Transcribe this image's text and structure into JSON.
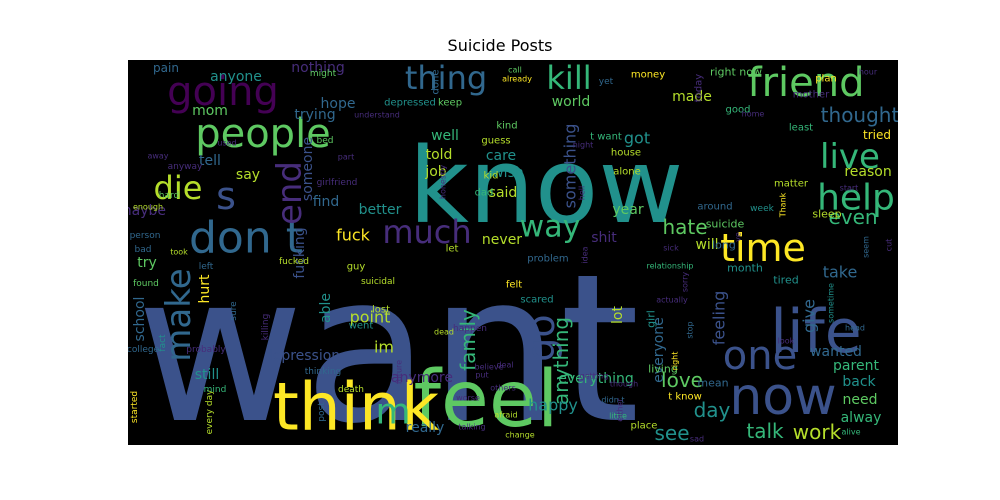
{
  "chart_data": {
    "type": "wordcloud",
    "title": "Suicide Posts",
    "background": "#000000",
    "words": [
      {
        "text": "want",
        "weight": 100,
        "color": "#3b528b"
      },
      {
        "text": "know",
        "weight": 78,
        "color": "#21918c"
      },
      {
        "text": "feel",
        "weight": 45,
        "color": "#5ec962"
      },
      {
        "text": "think",
        "weight": 42,
        "color": "#fde725"
      },
      {
        "text": "life",
        "weight": 40,
        "color": "#3b528b"
      },
      {
        "text": "now",
        "weight": 36,
        "color": "#3b528b"
      },
      {
        "text": "people",
        "weight": 32,
        "color": "#5ec962"
      },
      {
        "text": "don t",
        "weight": 30,
        "color": "#31688e"
      },
      {
        "text": "going",
        "weight": 30,
        "color": "#440154"
      },
      {
        "text": "time",
        "weight": 28,
        "color": "#fde725"
      },
      {
        "text": "friend",
        "weight": 28,
        "color": "#5ec962"
      },
      {
        "text": "make",
        "weight": 26,
        "color": "#31688e"
      },
      {
        "text": "go",
        "weight": 26,
        "color": "#3b528b"
      },
      {
        "text": "one",
        "weight": 24,
        "color": "#3b528b"
      },
      {
        "text": "thing",
        "weight": 22,
        "color": "#31688e"
      },
      {
        "text": "kill",
        "weight": 22,
        "color": "#35b779"
      },
      {
        "text": "much",
        "weight": 22,
        "color": "#472d7b"
      },
      {
        "text": "help",
        "weight": 22,
        "color": "#35b779"
      },
      {
        "text": "live",
        "weight": 22,
        "color": "#35b779"
      },
      {
        "text": "die",
        "weight": 20,
        "color": "#b5de2b"
      },
      {
        "text": "way",
        "weight": 20,
        "color": "#35b779"
      },
      {
        "text": "m",
        "weight": 20,
        "color": "#35b779"
      },
      {
        "text": "s",
        "weight": 20,
        "color": "#3b528b"
      },
      {
        "text": "end",
        "weight": 20,
        "color": "#472d7b"
      },
      {
        "text": "work",
        "weight": 14,
        "color": "#b5de2b"
      },
      {
        "text": "talk",
        "weight": 14,
        "color": "#35b779"
      },
      {
        "text": "family",
        "weight": 13,
        "color": "#35b779"
      },
      {
        "text": "anything",
        "weight": 12,
        "color": "#35b779"
      },
      {
        "text": "love",
        "weight": 12,
        "color": "#5ec962"
      },
      {
        "text": "day",
        "weight": 12,
        "color": "#21918c"
      },
      {
        "text": "see",
        "weight": 12,
        "color": "#21918c"
      },
      {
        "text": "hate",
        "weight": 12,
        "color": "#5ec962"
      },
      {
        "text": "even",
        "weight": 12,
        "color": "#35b779"
      },
      {
        "text": "thought",
        "weight": 12,
        "color": "#31688e"
      },
      {
        "text": "tried",
        "weight": 11,
        "color": "#fde725"
      },
      {
        "text": "reason",
        "weight": 11,
        "color": "#b5de2b"
      },
      {
        "text": "take",
        "weight": 11,
        "color": "#31688e"
      },
      {
        "text": "feeling",
        "weight": 11,
        "color": "#3b528b"
      },
      {
        "text": "give",
        "weight": 10,
        "color": "#31688e"
      },
      {
        "text": "wanted",
        "weight": 10,
        "color": "#31688e"
      },
      {
        "text": "parent",
        "weight": 10,
        "color": "#35b779"
      },
      {
        "text": "back",
        "weight": 10,
        "color": "#21918c"
      },
      {
        "text": "need",
        "weight": 10,
        "color": "#5ec962"
      },
      {
        "text": "alway",
        "weight": 10,
        "color": "#35b779"
      },
      {
        "text": "everyone",
        "weight": 10,
        "color": "#31688e"
      },
      {
        "text": "everything",
        "weight": 10,
        "color": "#35b779"
      },
      {
        "text": "something",
        "weight": 10,
        "color": "#3b528b"
      },
      {
        "text": "really",
        "weight": 10,
        "color": "#31688e"
      },
      {
        "text": "anymore",
        "weight": 10,
        "color": "#472d7b"
      },
      {
        "text": "happy",
        "weight": 10,
        "color": "#21918c"
      },
      {
        "text": "im",
        "weight": 10,
        "color": "#b5de2b"
      },
      {
        "text": "point",
        "weight": 10,
        "color": "#b5de2b"
      },
      {
        "text": "fuck",
        "weight": 10,
        "color": "#fde725"
      },
      {
        "text": "better",
        "weight": 10,
        "color": "#21918c"
      },
      {
        "text": "find",
        "weight": 10,
        "color": "#31688e"
      },
      {
        "text": "say",
        "weight": 10,
        "color": "#b5de2b"
      },
      {
        "text": "tell",
        "weight": 10,
        "color": "#31688e"
      },
      {
        "text": "told",
        "weight": 10,
        "color": "#b5de2b"
      },
      {
        "text": "well",
        "weight": 10,
        "color": "#35b779"
      },
      {
        "text": "care",
        "weight": 10,
        "color": "#21918c"
      },
      {
        "text": "wish",
        "weight": 10,
        "color": "#21918c"
      },
      {
        "text": "said",
        "weight": 10,
        "color": "#b5de2b"
      },
      {
        "text": "job",
        "weight": 10,
        "color": "#b5de2b"
      },
      {
        "text": "year",
        "weight": 10,
        "color": "#5ec962"
      },
      {
        "text": "shit",
        "weight": 10,
        "color": "#472d7b"
      },
      {
        "text": "never",
        "weight": 10,
        "color": "#b5de2b"
      },
      {
        "text": "will",
        "weight": 10,
        "color": "#b5de2b"
      },
      {
        "text": "lot",
        "weight": 10,
        "color": "#b5de2b"
      },
      {
        "text": "made",
        "weight": 10,
        "color": "#b5de2b"
      },
      {
        "text": "got",
        "weight": 10,
        "color": "#21918c"
      },
      {
        "text": "world",
        "weight": 10,
        "color": "#5ec962"
      },
      {
        "text": "hope",
        "weight": 10,
        "color": "#31688e"
      },
      {
        "text": "nothing",
        "weight": 10,
        "color": "#472d7b"
      },
      {
        "text": "anyone",
        "weight": 10,
        "color": "#21918c"
      },
      {
        "text": "mom",
        "weight": 10,
        "color": "#5ec962"
      },
      {
        "text": "someone",
        "weight": 10,
        "color": "#3b528b"
      },
      {
        "text": "fucking",
        "weight": 10,
        "color": "#3b528b"
      },
      {
        "text": "maybe",
        "weight": 10,
        "color": "#472d7b"
      },
      {
        "text": "try",
        "weight": 10,
        "color": "#5ec962"
      },
      {
        "text": "hurt",
        "weight": 10,
        "color": "#fde725"
      },
      {
        "text": "school",
        "weight": 9,
        "color": "#31688e"
      },
      {
        "text": "depression",
        "weight": 9,
        "color": "#3b528b"
      },
      {
        "text": "still",
        "weight": 10,
        "color": "#21918c"
      },
      {
        "text": "able",
        "weight": 10,
        "color": "#21918c"
      },
      {
        "text": "trying",
        "weight": 10,
        "color": "#31688e"
      },
      {
        "text": "pain",
        "weight": 10,
        "color": "#31688e"
      },
      {
        "text": "right now",
        "weight": 8,
        "color": "#5ec962"
      },
      {
        "text": "t want",
        "weight": 8,
        "color": "#35b779"
      },
      {
        "text": "house",
        "weight": 8,
        "color": "#b5de2b"
      },
      {
        "text": "alone",
        "weight": 8,
        "color": "#b5de2b"
      },
      {
        "text": "sleep",
        "weight": 8,
        "color": "#b5de2b"
      },
      {
        "text": "suicide",
        "weight": 8,
        "color": "#5ec962"
      },
      {
        "text": "long",
        "weight": 8,
        "color": "#31688e"
      },
      {
        "text": "month",
        "weight": 8,
        "color": "#21918c"
      },
      {
        "text": "tired",
        "weight": 8,
        "color": "#21918c"
      },
      {
        "text": "girl",
        "weight": 8,
        "color": "#21918c"
      },
      {
        "text": "living",
        "weight": 8,
        "color": "#5ec962"
      },
      {
        "text": "mean",
        "weight": 8,
        "color": "#31688e"
      },
      {
        "text": "place",
        "weight": 8,
        "color": "#b5de2b"
      },
      {
        "text": "t know",
        "weight": 7,
        "color": "#fde725"
      },
      {
        "text": "guess",
        "weight": 8,
        "color": "#b5de2b"
      },
      {
        "text": "kind",
        "weight": 8,
        "color": "#5ec962"
      },
      {
        "text": "keep",
        "weight": 8,
        "color": "#5ec962"
      },
      {
        "text": "depressed",
        "weight": 8,
        "color": "#21918c"
      },
      {
        "text": "done",
        "weight": 8,
        "color": "#31688e"
      },
      {
        "text": "yet",
        "weight": 7,
        "color": "#31688e"
      },
      {
        "text": "money",
        "weight": 7,
        "color": "#fde725"
      },
      {
        "text": "today",
        "weight": 7,
        "color": "#472d7b"
      },
      {
        "text": "good",
        "weight": 7,
        "color": "#35b779"
      },
      {
        "text": "plan",
        "weight": 7,
        "color": "#fde725"
      },
      {
        "text": "mother",
        "weight": 7,
        "color": "#472d7b"
      },
      {
        "text": "least",
        "weight": 7,
        "color": "#35b779"
      },
      {
        "text": "matter",
        "weight": 7,
        "color": "#b5de2b"
      },
      {
        "text": "around",
        "weight": 7,
        "color": "#31688e"
      },
      {
        "text": "problem",
        "weight": 7,
        "color": "#31688e"
      },
      {
        "text": "let",
        "weight": 7,
        "color": "#b5de2b"
      },
      {
        "text": "felt",
        "weight": 7,
        "color": "#fde725"
      },
      {
        "text": "scared",
        "weight": 7,
        "color": "#21918c"
      },
      {
        "text": "lost",
        "weight": 7,
        "color": "#b5de2b"
      },
      {
        "text": "went",
        "weight": 7,
        "color": "#21918c"
      },
      {
        "text": "kid",
        "weight": 7,
        "color": "#b5de2b"
      },
      {
        "text": "dad",
        "weight": 7,
        "color": "#35b779"
      },
      {
        "text": "guy",
        "weight": 7,
        "color": "#b5de2b"
      },
      {
        "text": "anyway",
        "weight": 7,
        "color": "#472d7b"
      },
      {
        "text": "hard",
        "weight": 7,
        "color": "#5ec962"
      },
      {
        "text": "person",
        "weight": 7,
        "color": "#31688e"
      },
      {
        "text": "bad",
        "weight": 7,
        "color": "#31688e"
      },
      {
        "text": "left",
        "weight": 7,
        "color": "#31688e"
      },
      {
        "text": "sure",
        "weight": 7,
        "color": "#31688e"
      },
      {
        "text": "fact",
        "weight": 6,
        "color": "#21918c"
      },
      {
        "text": "killing",
        "weight": 6,
        "color": "#472d7b"
      },
      {
        "text": "probably",
        "weight": 6,
        "color": "#472d7b"
      },
      {
        "text": "thinking",
        "weight": 6,
        "color": "#31688e"
      },
      {
        "text": "happen",
        "weight": 6,
        "color": "#472d7b"
      },
      {
        "text": "suicidal",
        "weight": 6,
        "color": "#b5de2b"
      },
      {
        "text": "death",
        "weight": 7,
        "color": "#b5de2b"
      },
      {
        "text": "post",
        "weight": 6,
        "color": "#31688e"
      },
      {
        "text": "every day",
        "weight": 6,
        "color": "#b5de2b"
      },
      {
        "text": "started",
        "weight": 6,
        "color": "#fde725"
      },
      {
        "text": "mind",
        "weight": 6,
        "color": "#35b779"
      },
      {
        "text": "college",
        "weight": 6,
        "color": "#31688e"
      },
      {
        "text": "found",
        "weight": 6,
        "color": "#5ec962"
      },
      {
        "text": "bed",
        "weight": 6,
        "color": "#5ec962"
      },
      {
        "text": "might",
        "weight": 6,
        "color": "#5ec962"
      },
      {
        "text": "call",
        "weight": 6,
        "color": "#5ec962"
      },
      {
        "text": "already",
        "weight": 6,
        "color": "#fde725"
      },
      {
        "text": "understand",
        "weight": 5,
        "color": "#472d7b"
      },
      {
        "text": "home",
        "weight": 6,
        "color": "#472d7b"
      },
      {
        "text": "hour",
        "weight": 5,
        "color": "#472d7b"
      },
      {
        "text": "start",
        "weight": 5,
        "color": "#472d7b"
      },
      {
        "text": "week",
        "weight": 6,
        "color": "#21918c"
      },
      {
        "text": "Thank",
        "weight": 5,
        "color": "#fde725"
      },
      {
        "text": "ve",
        "weight": 6,
        "color": "#472d7b"
      },
      {
        "text": "seem",
        "weight": 6,
        "color": "#31688e"
      },
      {
        "text": "cut",
        "weight": 6,
        "color": "#472d7b"
      },
      {
        "text": "head",
        "weight": 6,
        "color": "#31688e"
      },
      {
        "text": "sometime",
        "weight": 6,
        "color": "#21918c"
      },
      {
        "text": "look",
        "weight": 6,
        "color": "#472d7b"
      },
      {
        "text": "alive",
        "weight": 6,
        "color": "#35b779"
      },
      {
        "text": "sad",
        "weight": 6,
        "color": "#472d7b"
      },
      {
        "text": "little",
        "weight": 6,
        "color": "#35b779"
      },
      {
        "text": "didn t",
        "weight": 6,
        "color": "#31688e"
      },
      {
        "text": "though",
        "weight": 6,
        "color": "#472d7b"
      },
      {
        "text": "either",
        "weight": 6,
        "color": "#472d7b"
      },
      {
        "text": "getting",
        "weight": 6,
        "color": "#472d7b"
      },
      {
        "text": "right",
        "weight": 6,
        "color": "#fde725"
      },
      {
        "text": "stop",
        "weight": 6,
        "color": "#31688e"
      },
      {
        "text": "sorry",
        "weight": 6,
        "color": "#472d7b"
      },
      {
        "text": "relationship",
        "weight": 5,
        "color": "#35b779"
      },
      {
        "text": "actually",
        "weight": 6,
        "color": "#472d7b"
      },
      {
        "text": "sick",
        "weight": 6,
        "color": "#472d7b"
      },
      {
        "text": "idea",
        "weight": 6,
        "color": "#472d7b"
      },
      {
        "text": "hell",
        "weight": 6,
        "color": "#472d7b"
      },
      {
        "text": "night",
        "weight": 6,
        "color": "#472d7b"
      },
      {
        "text": "honestly",
        "weight": 5,
        "color": "#472d7b"
      },
      {
        "text": "girlfriend",
        "weight": 5,
        "color": "#472d7b"
      },
      {
        "text": "part",
        "weight": 5,
        "color": "#472d7b"
      },
      {
        "text": "used",
        "weight": 6,
        "color": "#472d7b"
      },
      {
        "text": "away",
        "weight": 5,
        "color": "#472d7b"
      },
      {
        "text": "enough",
        "weight": 6,
        "color": "#b5de2b"
      },
      {
        "text": "took",
        "weight": 6,
        "color": "#b5de2b"
      },
      {
        "text": "fucked",
        "weight": 5,
        "color": "#b5de2b"
      },
      {
        "text": "dead",
        "weight": 5,
        "color": "#b5de2b"
      },
      {
        "text": "deal",
        "weight": 5,
        "color": "#472d7b"
      },
      {
        "text": "worse",
        "weight": 5,
        "color": "#472d7b"
      },
      {
        "text": "put",
        "weight": 6,
        "color": "#472d7b"
      },
      {
        "text": "believe",
        "weight": 5,
        "color": "#472d7b"
      },
      {
        "text": "others",
        "weight": 5,
        "color": "#472d7b"
      },
      {
        "text": "talking",
        "weight": 5,
        "color": "#472d7b"
      },
      {
        "text": "afraid",
        "weight": 6,
        "color": "#b5de2b"
      },
      {
        "text": "change",
        "weight": 5,
        "color": "#b5de2b"
      },
      {
        "text": "future",
        "weight": 5,
        "color": "#472d7b"
      },
      {
        "text": "past",
        "weight": 5,
        "color": "#472d7b"
      },
      {
        "text": "gone",
        "weight": 6,
        "color": "#b5de2b"
      },
      {
        "text": "come",
        "weight": 6,
        "color": "#472d7b"
      },
      {
        "text": "without",
        "weight": 5,
        "color": "#472d7b"
      },
      {
        "text": "wrong",
        "weight": 5,
        "color": "#472d7b"
      }
    ]
  }
}
